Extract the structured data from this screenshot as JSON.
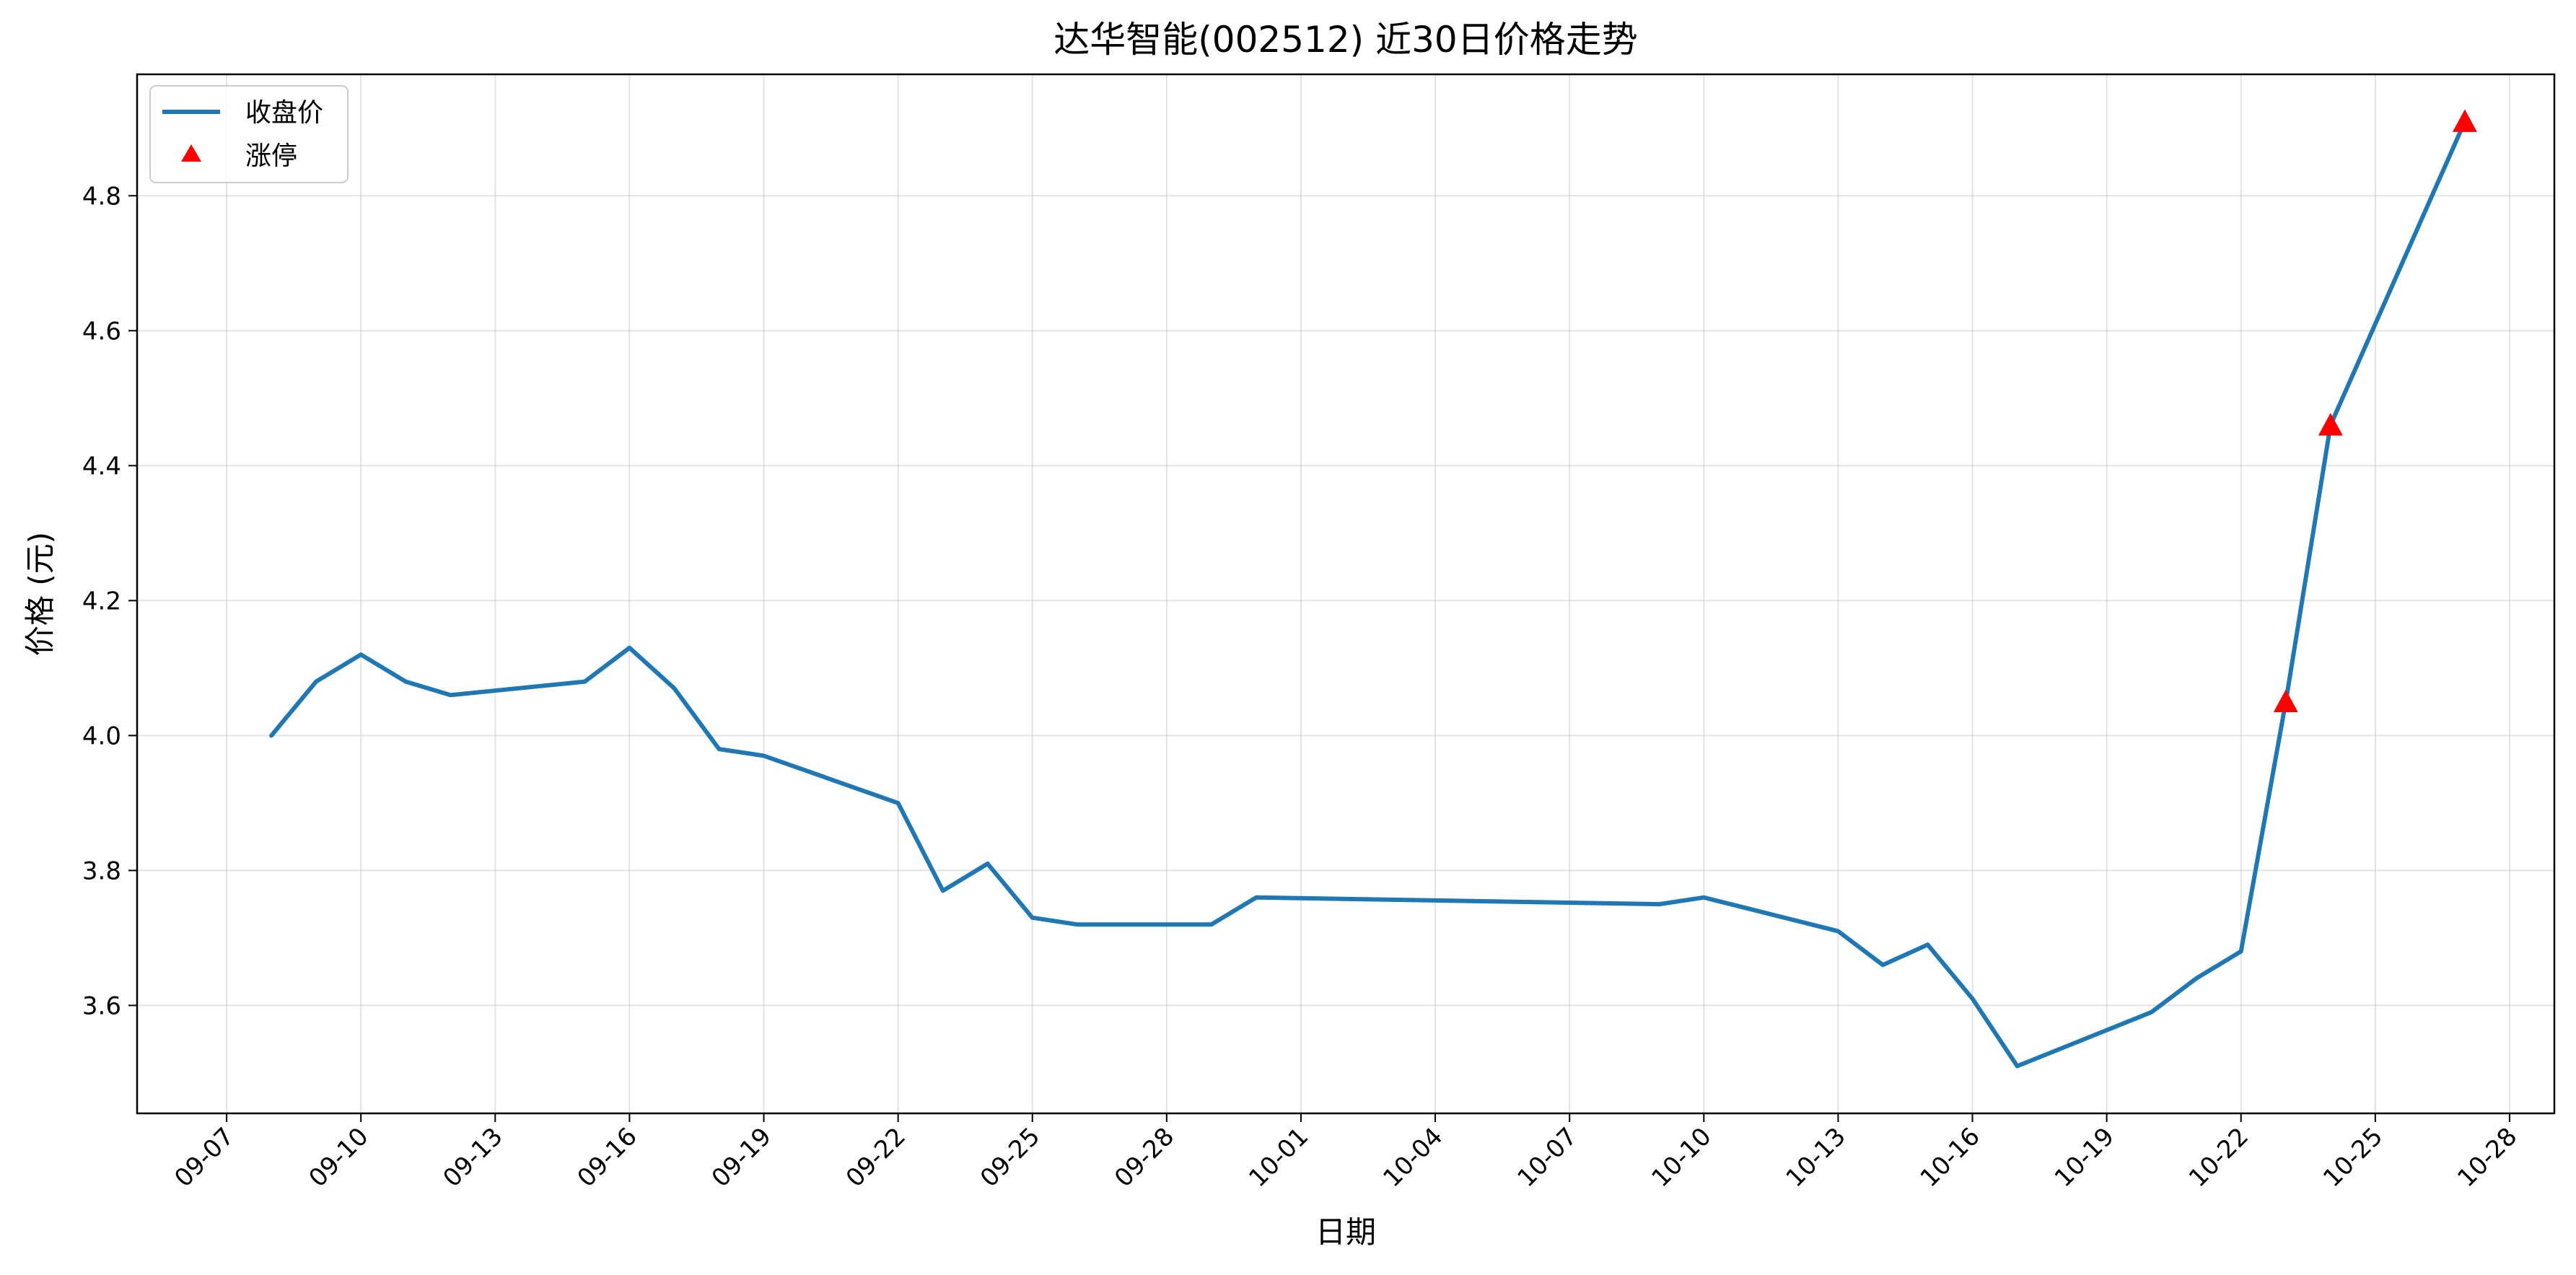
{
  "chart_data": {
    "type": "line",
    "title": "达华智能(002512) 近30日价格走势",
    "xlabel": "日期",
    "ylabel": "价格 (元)",
    "x_axis": {
      "kind": "date",
      "year": 2024,
      "range": [
        "2024-09-05",
        "2024-10-29"
      ],
      "ticks": [
        "2024-09-07",
        "2024-09-10",
        "2024-09-13",
        "2024-09-16",
        "2024-09-19",
        "2024-09-22",
        "2024-09-25",
        "2024-09-28",
        "2024-10-01",
        "2024-10-04",
        "2024-10-07",
        "2024-10-10",
        "2024-10-13",
        "2024-10-16",
        "2024-10-19",
        "2024-10-22",
        "2024-10-25",
        "2024-10-28"
      ],
      "tick_labels": [
        "09-07",
        "09-10",
        "09-13",
        "09-16",
        "09-19",
        "09-22",
        "09-25",
        "09-28",
        "10-01",
        "10-04",
        "10-07",
        "10-10",
        "10-13",
        "10-16",
        "10-19",
        "10-22",
        "10-25",
        "10-28"
      ]
    },
    "y_axis": {
      "range": [
        3.44,
        4.98
      ],
      "ticks": [
        3.6,
        3.8,
        4.0,
        4.2,
        4.4,
        4.6,
        4.8
      ],
      "tick_labels": [
        "3.6",
        "3.8",
        "4.0",
        "4.2",
        "4.4",
        "4.6",
        "4.8"
      ]
    },
    "grid": true,
    "legend": {
      "placement": "top-left",
      "entries": [
        {
          "label": "收盘价",
          "marker": "line",
          "color": "#1f77b4"
        },
        {
          "label": "涨停",
          "marker": "triangle",
          "color": "#ff0000"
        }
      ]
    },
    "series": [
      {
        "name": "收盘价",
        "color": "#1f77b4",
        "points": [
          {
            "x": "2024-09-08",
            "y": 4.0
          },
          {
            "x": "2024-09-09",
            "y": 4.08
          },
          {
            "x": "2024-09-10",
            "y": 4.12
          },
          {
            "x": "2024-09-11",
            "y": 4.08
          },
          {
            "x": "2024-09-12",
            "y": 4.06
          },
          {
            "x": "2024-09-15",
            "y": 4.08
          },
          {
            "x": "2024-09-16",
            "y": 4.13
          },
          {
            "x": "2024-09-17",
            "y": 4.07
          },
          {
            "x": "2024-09-18",
            "y": 3.98
          },
          {
            "x": "2024-09-19",
            "y": 3.97
          },
          {
            "x": "2024-09-22",
            "y": 3.9
          },
          {
            "x": "2024-09-23",
            "y": 3.77
          },
          {
            "x": "2024-09-24",
            "y": 3.81
          },
          {
            "x": "2024-09-25",
            "y": 3.73
          },
          {
            "x": "2024-09-26",
            "y": 3.72
          },
          {
            "x": "2024-09-29",
            "y": 3.72
          },
          {
            "x": "2024-09-30",
            "y": 3.76
          },
          {
            "x": "2024-10-09",
            "y": 3.75
          },
          {
            "x": "2024-10-10",
            "y": 3.76
          },
          {
            "x": "2024-10-13",
            "y": 3.71
          },
          {
            "x": "2024-10-14",
            "y": 3.66
          },
          {
            "x": "2024-10-15",
            "y": 3.69
          },
          {
            "x": "2024-10-16",
            "y": 3.61
          },
          {
            "x": "2024-10-17",
            "y": 3.51
          },
          {
            "x": "2024-10-20",
            "y": 3.59
          },
          {
            "x": "2024-10-21",
            "y": 3.64
          },
          {
            "x": "2024-10-22",
            "y": 3.68
          },
          {
            "x": "2024-10-23",
            "y": 4.05
          },
          {
            "x": "2024-10-24",
            "y": 4.46
          },
          {
            "x": "2024-10-27",
            "y": 4.91
          }
        ]
      },
      {
        "name": "涨停",
        "type": "scatter",
        "marker": "triangle",
        "color": "#ff0000",
        "points": [
          {
            "x": "2024-10-23",
            "y": 4.05
          },
          {
            "x": "2024-10-24",
            "y": 4.46
          },
          {
            "x": "2024-10-27",
            "y": 4.91
          }
        ]
      }
    ]
  }
}
